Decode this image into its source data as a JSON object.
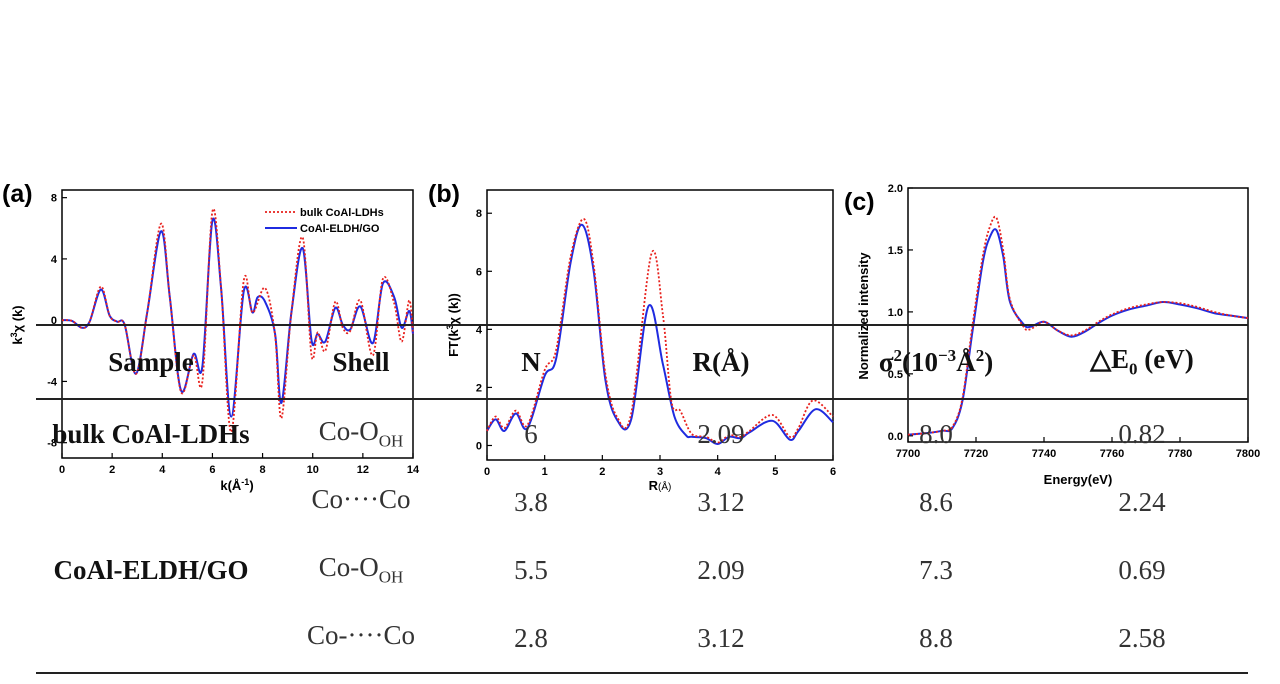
{
  "chart_data": [
    {
      "panel": "(a)",
      "type": "line",
      "xlabel": "k(Å",
      "xlabel_sup": "-1",
      "xlabel_close": ")",
      "ylabel": "k",
      "ylabel_sup": "3",
      "ylabel_rest": "χ (k)",
      "xlim": [
        0,
        14
      ],
      "ylim": [
        -9,
        8.5
      ],
      "xticks": [
        "0",
        "2",
        "4",
        "6",
        "8",
        "10",
        "12",
        "14"
      ],
      "yticks": [
        "-8",
        "-4",
        "0",
        "4",
        "8"
      ],
      "legend": [
        "bulk CoAl-LDHs",
        "CoAl-ELDH/GO"
      ],
      "series": [
        {
          "name": "bulk CoAl-LDHs",
          "color": "#e8211d",
          "dash": true,
          "points": [
            [
              0,
              0
            ],
            [
              0.4,
              -0.05
            ],
            [
              0.8,
              -0.5
            ],
            [
              1.1,
              -0.1
            ],
            [
              1.55,
              2.2
            ],
            [
              1.9,
              0.3
            ],
            [
              2.2,
              -0.1
            ],
            [
              2.5,
              -0.3
            ],
            [
              2.95,
              -3.5
            ],
            [
              3.4,
              0.5
            ],
            [
              3.95,
              6.3
            ],
            [
              4.3,
              1.5
            ],
            [
              4.75,
              -4.7
            ],
            [
              5.25,
              -2.3
            ],
            [
              5.6,
              -4.0
            ],
            [
              6.0,
              7.1
            ],
            [
              6.35,
              2.0
            ],
            [
              6.75,
              -7.3
            ],
            [
              7.25,
              2.6
            ],
            [
              7.6,
              0.5
            ],
            [
              8.1,
              2.1
            ],
            [
              8.5,
              -1.0
            ],
            [
              8.75,
              -6.4
            ],
            [
              9.15,
              0.5
            ],
            [
              9.6,
              5.4
            ],
            [
              9.95,
              -2.3
            ],
            [
              10.2,
              -0.8
            ],
            [
              10.5,
              -2.0
            ],
            [
              10.9,
              1.2
            ],
            [
              11.2,
              -0.5
            ],
            [
              11.5,
              -0.7
            ],
            [
              11.9,
              1.3
            ],
            [
              12.4,
              -2.3
            ],
            [
              12.8,
              2.7
            ],
            [
              13.25,
              1.1
            ],
            [
              13.55,
              -1.4
            ],
            [
              13.85,
              1.3
            ],
            [
              14,
              -0.9
            ]
          ]
        },
        {
          "name": "CoAl-ELDH/GO",
          "color": "#1f2be0",
          "dash": false,
          "points": [
            [
              0,
              0
            ],
            [
              0.4,
              -0.05
            ],
            [
              0.8,
              -0.5
            ],
            [
              1.1,
              -0.1
            ],
            [
              1.55,
              2.0
            ],
            [
              1.9,
              0.3
            ],
            [
              2.2,
              -0.1
            ],
            [
              2.5,
              -0.3
            ],
            [
              2.95,
              -3.5
            ],
            [
              3.4,
              0.5
            ],
            [
              3.95,
              5.8
            ],
            [
              4.3,
              1.5
            ],
            [
              4.75,
              -4.6
            ],
            [
              5.25,
              -2.2
            ],
            [
              5.6,
              -3.0
            ],
            [
              6.0,
              6.5
            ],
            [
              6.35,
              2.0
            ],
            [
              6.75,
              -6.3
            ],
            [
              7.25,
              1.9
            ],
            [
              7.6,
              0.5
            ],
            [
              7.8,
              1.5
            ],
            [
              8.1,
              1.2
            ],
            [
              8.5,
              -0.9
            ],
            [
              8.75,
              -5.4
            ],
            [
              9.15,
              0.5
            ],
            [
              9.6,
              4.7
            ],
            [
              9.95,
              -1.3
            ],
            [
              10.2,
              -0.9
            ],
            [
              10.5,
              -1.4
            ],
            [
              10.9,
              0.8
            ],
            [
              11.2,
              -0.3
            ],
            [
              11.5,
              -0.6
            ],
            [
              11.9,
              0.9
            ],
            [
              12.4,
              -1.5
            ],
            [
              12.8,
              2.4
            ],
            [
              13.25,
              1.5
            ],
            [
              13.55,
              -0.5
            ],
            [
              13.85,
              0.6
            ],
            [
              14,
              -0.9
            ]
          ]
        }
      ]
    },
    {
      "panel": "(b)",
      "type": "line",
      "xlabel": "R",
      "xlabel_small": "(Å)",
      "ylabel": "FT(k",
      "ylabel_sup": "3",
      "ylabel_rest": "χ (k))",
      "xlim": [
        0,
        6
      ],
      "ylim": [
        -0.5,
        8.8
      ],
      "xticks": [
        "0",
        "1",
        "2",
        "3",
        "4",
        "5",
        "6"
      ],
      "yticks": [
        "0",
        "2",
        "4",
        "6",
        "8"
      ],
      "series": [
        {
          "name": "bulk CoAl-LDHs",
          "color": "#e8211d",
          "dash": true,
          "points": [
            [
              0,
              0.5
            ],
            [
              0.15,
              1.0
            ],
            [
              0.3,
              0.6
            ],
            [
              0.5,
              1.2
            ],
            [
              0.7,
              0.7
            ],
            [
              1.0,
              2.6
            ],
            [
              1.2,
              3.3
            ],
            [
              1.45,
              6.5
            ],
            [
              1.68,
              7.8
            ],
            [
              1.85,
              6.2
            ],
            [
              2.05,
              2.5
            ],
            [
              2.25,
              1.0
            ],
            [
              2.5,
              1.1
            ],
            [
              2.85,
              6.6
            ],
            [
              3.05,
              4.5
            ],
            [
              3.2,
              1.5
            ],
            [
              3.35,
              1.2
            ],
            [
              3.55,
              0.4
            ],
            [
              3.8,
              0.3
            ],
            [
              4.0,
              0.1
            ],
            [
              4.2,
              0.35
            ],
            [
              4.4,
              0.3
            ],
            [
              4.55,
              0.5
            ],
            [
              4.95,
              1.05
            ],
            [
              5.25,
              0.3
            ],
            [
              5.4,
              0.6
            ],
            [
              5.65,
              1.55
            ],
            [
              6.0,
              1.0
            ]
          ]
        },
        {
          "name": "CoAl-ELDH/GO",
          "color": "#1f2be0",
          "dash": false,
          "points": [
            [
              0,
              0.5
            ],
            [
              0.15,
              0.9
            ],
            [
              0.3,
              0.5
            ],
            [
              0.5,
              1.1
            ],
            [
              0.7,
              0.6
            ],
            [
              1.0,
              2.4
            ],
            [
              1.2,
              3.0
            ],
            [
              1.45,
              6.3
            ],
            [
              1.65,
              7.6
            ],
            [
              1.85,
              6.0
            ],
            [
              2.05,
              2.3
            ],
            [
              2.25,
              0.9
            ],
            [
              2.5,
              0.9
            ],
            [
              2.8,
              4.8
            ],
            [
              3.05,
              2.8
            ],
            [
              3.25,
              1.0
            ],
            [
              3.45,
              0.35
            ],
            [
              3.55,
              0.3
            ],
            [
              3.8,
              0.25
            ],
            [
              4.0,
              0.05
            ],
            [
              4.2,
              0.3
            ],
            [
              4.4,
              0.25
            ],
            [
              4.55,
              0.45
            ],
            [
              4.95,
              0.85
            ],
            [
              5.25,
              0.2
            ],
            [
              5.4,
              0.5
            ],
            [
              5.7,
              1.25
            ],
            [
              6.0,
              0.8
            ]
          ]
        }
      ]
    },
    {
      "panel": "(c)",
      "type": "line",
      "xlabel": "Energy(eV)",
      "ylabel": "Normalized intensity",
      "xlim": [
        7700,
        7800
      ],
      "ylim": [
        -0.05,
        2.0
      ],
      "xticks": [
        "7700",
        "7720",
        "7740",
        "7760",
        "7780",
        "7800"
      ],
      "yticks": [
        "0.0",
        "0.5",
        "1.0",
        "1.5",
        "2.0"
      ],
      "series": [
        {
          "name": "bulk CoAl-LDHs",
          "color": "#e8211d",
          "dash": true,
          "points": [
            [
              7700,
              0.01
            ],
            [
              7705,
              0.02
            ],
            [
              7710,
              0.04
            ],
            [
              7713,
              0.07
            ],
            [
              7716,
              0.3
            ],
            [
              7719,
              0.9
            ],
            [
              7722,
              1.45
            ],
            [
              7724,
              1.68
            ],
            [
              7726,
              1.76
            ],
            [
              7728,
              1.5
            ],
            [
              7730,
              1.1
            ],
            [
              7734,
              0.88
            ],
            [
              7736,
              0.86
            ],
            [
              7740,
              0.92
            ],
            [
              7744,
              0.85
            ],
            [
              7748,
              0.81
            ],
            [
              7752,
              0.85
            ],
            [
              7756,
              0.92
            ],
            [
              7760,
              0.98
            ],
            [
              7765,
              1.03
            ],
            [
              7770,
              1.06
            ],
            [
              7775,
              1.08
            ],
            [
              7780,
              1.07
            ],
            [
              7785,
              1.04
            ],
            [
              7790,
              1.0
            ],
            [
              7795,
              0.97
            ],
            [
              7800,
              0.95
            ]
          ]
        },
        {
          "name": "CoAl-ELDH/GO",
          "color": "#1f2be0",
          "dash": false,
          "points": [
            [
              7700,
              0.01
            ],
            [
              7705,
              0.02
            ],
            [
              7710,
              0.04
            ],
            [
              7713,
              0.06
            ],
            [
              7716,
              0.28
            ],
            [
              7719,
              0.85
            ],
            [
              7722,
              1.4
            ],
            [
              7724,
              1.6
            ],
            [
              7726,
              1.66
            ],
            [
              7728,
              1.45
            ],
            [
              7730,
              1.08
            ],
            [
              7734,
              0.9
            ],
            [
              7736,
              0.88
            ],
            [
              7740,
              0.92
            ],
            [
              7744,
              0.85
            ],
            [
              7748,
              0.8
            ],
            [
              7752,
              0.84
            ],
            [
              7756,
              0.91
            ],
            [
              7760,
              0.97
            ],
            [
              7765,
              1.02
            ],
            [
              7770,
              1.05
            ],
            [
              7775,
              1.08
            ],
            [
              7780,
              1.06
            ],
            [
              7785,
              1.03
            ],
            [
              7790,
              0.99
            ],
            [
              7795,
              0.97
            ],
            [
              7800,
              0.95
            ]
          ]
        }
      ]
    }
  ],
  "table": {
    "headers": {
      "sample": "Sample",
      "shell": "Shell",
      "n": "N",
      "r": "R(Å)",
      "sigma_main": "σ",
      "sigma_sup": "2",
      "sigma_mid": "(10",
      "sigma_exp": "−3",
      "sigma_unit": "Å",
      "sigma_unit_sup": "2",
      "sigma_close": ")",
      "de_main": "△E",
      "de_sub": "0",
      "de_unit": " (eV)"
    },
    "rows": [
      {
        "sample": "bulk CoAl-LDHs",
        "shell": "Co-O",
        "shell_sub": "OH",
        "n": "6",
        "r": "2.09",
        "sigma": "8.0",
        "de": "0.82"
      },
      {
        "sample": "",
        "shell": "Co····Co",
        "shell_sub": "",
        "n": "3.8",
        "r": "3.12",
        "sigma": "8.6",
        "de": "2.24"
      },
      {
        "sample": "CoAl-ELDH/GO",
        "shell": "Co-O",
        "shell_sub": "OH",
        "n": "5.5",
        "r": "2.09",
        "sigma": "7.3",
        "de": "0.69"
      },
      {
        "sample": "",
        "shell": "Co-····Co",
        "shell_sub": "",
        "n": "2.8",
        "r": "3.12",
        "sigma": "8.8",
        "de": "2.58"
      }
    ]
  }
}
